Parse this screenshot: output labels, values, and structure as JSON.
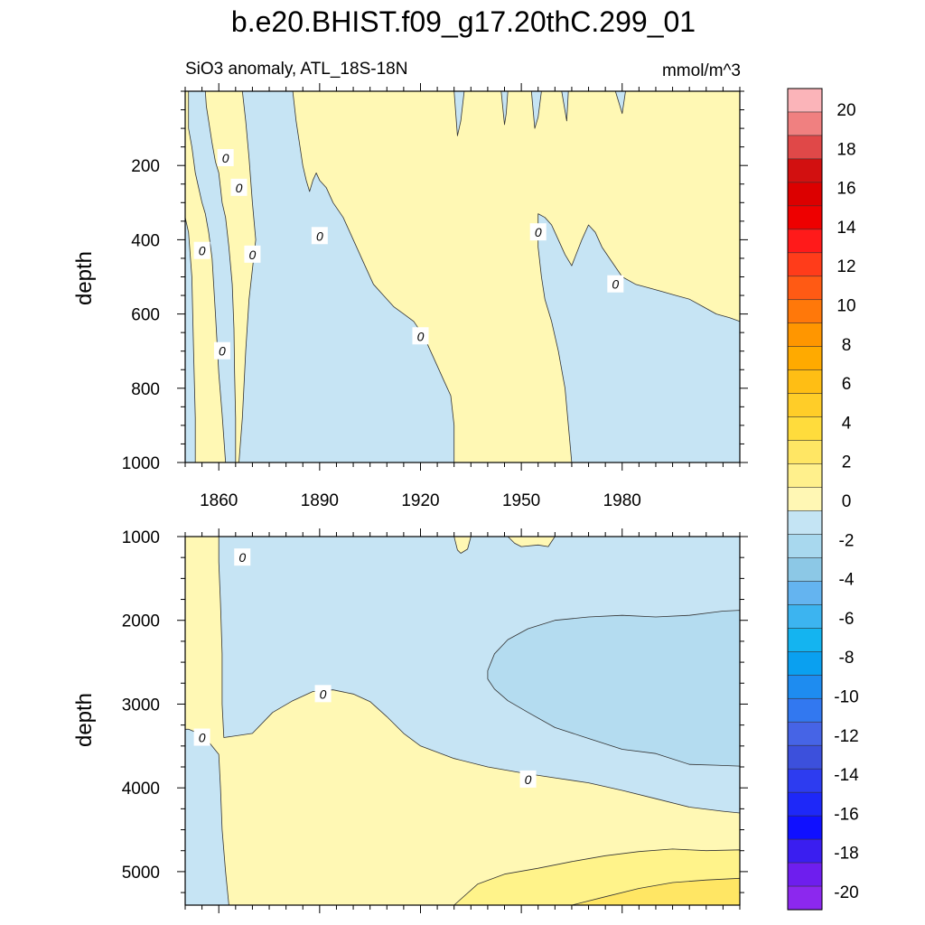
{
  "chart_data": {
    "type": "contour",
    "title": "b.e20.BHIST.f09_g17.20thC.299_01",
    "left_subtitle": "SiO3 anomaly, ATL_18S-18N",
    "right_subtitle": "mmol/m^3",
    "xlabel": "",
    "ylabel": "depth",
    "xlim": [
      1850,
      2015
    ],
    "x_ticks": [
      1860,
      1890,
      1920,
      1950,
      1980
    ],
    "contour_label": "0",
    "panels": [
      {
        "name": "upper",
        "ylim": [
          0,
          1000
        ],
        "y_inverted": true,
        "y_ticks": [
          200,
          400,
          600,
          800,
          1000
        ],
        "background_level": 0.5,
        "regions": [
          {
            "level": -0.5,
            "points": [
              [
                1851,
                0
              ],
              [
                1856,
                0
              ],
              [
                1856.3,
                40
              ],
              [
                1857,
                80
              ],
              [
                1858,
                140
              ],
              [
                1859,
                190
              ],
              [
                1860,
                220
              ],
              [
                1860.5,
                260
              ],
              [
                1861,
                300
              ],
              [
                1862,
                340
              ],
              [
                1863,
                420
              ],
              [
                1864,
                520
              ],
              [
                1864.5,
                640
              ],
              [
                1864.7,
                760
              ],
              [
                1865,
                880
              ],
              [
                1865,
                1000
              ],
              [
                1862,
                1000
              ],
              [
                1861,
                870
              ],
              [
                1860,
                760
              ],
              [
                1859,
                600
              ],
              [
                1858,
                450
              ],
              [
                1857,
                380
              ],
              [
                1856,
                330
              ],
              [
                1855,
                300
              ],
              [
                1854,
                260
              ],
              [
                1853,
                220
              ],
              [
                1852,
                150
              ],
              [
                1851,
                100
              ]
            ]
          },
          {
            "level": -0.5,
            "points": [
              [
                1850,
                340
              ],
              [
                1851,
                380
              ],
              [
                1852,
                500
              ],
              [
                1852.5,
                700
              ],
              [
                1853,
                880
              ],
              [
                1853,
                1000
              ],
              [
                1850,
                1000
              ]
            ]
          },
          {
            "level": -0.5,
            "points": [
              [
                1867,
                0
              ],
              [
                1882,
                0
              ],
              [
                1883,
                80
              ],
              [
                1884,
                140
              ],
              [
                1885,
                200
              ],
              [
                1886,
                240
              ],
              [
                1887,
                270
              ],
              [
                1888,
                240
              ],
              [
                1889,
                220
              ],
              [
                1890,
                240
              ],
              [
                1892,
                260
              ],
              [
                1894,
                300
              ],
              [
                1897,
                340
              ],
              [
                1900,
                400
              ],
              [
                1903,
                460
              ],
              [
                1906,
                520
              ],
              [
                1909,
                550
              ],
              [
                1912,
                580
              ],
              [
                1915,
                600
              ],
              [
                1918,
                620
              ],
              [
                1921,
                660
              ],
              [
                1924,
                720
              ],
              [
                1927,
                780
              ],
              [
                1929,
                820
              ],
              [
                1930,
                900
              ],
              [
                1930,
                1000
              ],
              [
                1866,
                1000
              ],
              [
                1867,
                880
              ],
              [
                1868,
                700
              ],
              [
                1869,
                560
              ],
              [
                1870,
                480
              ],
              [
                1871,
                400
              ],
              [
                1870,
                300
              ],
              [
                1869,
                180
              ],
              [
                1868,
                80
              ]
            ]
          },
          {
            "level": -0.5,
            "points": [
              [
                1955,
                330
              ],
              [
                1957,
                340
              ],
              [
                1959,
                360
              ],
              [
                1961,
                400
              ],
              [
                1963,
                440
              ],
              [
                1965,
                470
              ],
              [
                1968,
                400
              ],
              [
                1970,
                360
              ],
              [
                1972,
                380
              ],
              [
                1974,
                420
              ],
              [
                1977,
                460
              ],
              [
                1980,
                500
              ],
              [
                1984,
                520
              ],
              [
                1988,
                530
              ],
              [
                1992,
                540
              ],
              [
                1996,
                550
              ],
              [
                2000,
                560
              ],
              [
                2004,
                580
              ],
              [
                2008,
                600
              ],
              [
                2012,
                610
              ],
              [
                2015,
                620
              ],
              [
                2015,
                1000
              ],
              [
                1965,
                1000
              ],
              [
                1964,
                900
              ],
              [
                1963,
                800
              ],
              [
                1961,
                700
              ],
              [
                1959,
                620
              ],
              [
                1957,
                560
              ],
              [
                1956,
                500
              ],
              [
                1955,
                420
              ]
            ]
          },
          {
            "level": -0.5,
            "points": [
              [
                1930,
                0
              ],
              [
                1933,
                0
              ],
              [
                1932,
                80
              ],
              [
                1931,
                120
              ]
            ]
          },
          {
            "level": -0.5,
            "points": [
              [
                1944,
                0
              ],
              [
                1946,
                0
              ],
              [
                1945.5,
                60
              ],
              [
                1945,
                90
              ]
            ]
          },
          {
            "level": -0.5,
            "points": [
              [
                1953,
                0
              ],
              [
                1956,
                0
              ],
              [
                1955,
                70
              ],
              [
                1954,
                100
              ]
            ]
          },
          {
            "level": -0.5,
            "points": [
              [
                1962,
                0
              ],
              [
                1964,
                0
              ],
              [
                1963.5,
                80
              ]
            ]
          },
          {
            "level": -0.5,
            "points": [
              [
                1978,
                0
              ],
              [
                1981,
                0
              ],
              [
                1980,
                60
              ]
            ]
          }
        ],
        "label_positions": [
          [
            1862,
            180
          ],
          [
            1866,
            260
          ],
          [
            1855,
            430
          ],
          [
            1870,
            440
          ],
          [
            1861,
            700
          ],
          [
            1890,
            390
          ],
          [
            1920,
            660
          ],
          [
            1955,
            380
          ],
          [
            1978,
            520
          ]
        ]
      },
      {
        "name": "lower",
        "ylim": [
          1000,
          5400
        ],
        "y_inverted": true,
        "y_ticks": [
          1000,
          2000,
          3000,
          4000,
          5000
        ],
        "background_level": -0.5,
        "regions": [
          {
            "level": 0.5,
            "points": [
              [
                1850,
                1000
              ],
              [
                1860,
                1000
              ],
              [
                1860,
                1300
              ],
              [
                1860.5,
                1800
              ],
              [
                1861,
                2400
              ],
              [
                1861,
                3000
              ],
              [
                1861.5,
                3400
              ],
              [
                1870,
                3350
              ],
              [
                1876,
                3100
              ],
              [
                1882,
                2960
              ],
              [
                1888,
                2850
              ],
              [
                1894,
                2830
              ],
              [
                1900,
                2880
              ],
              [
                1905,
                2970
              ],
              [
                1910,
                3150
              ],
              [
                1915,
                3350
              ],
              [
                1920,
                3500
              ],
              [
                1930,
                3650
              ],
              [
                1940,
                3750
              ],
              [
                1950,
                3820
              ],
              [
                1960,
                3880
              ],
              [
                1970,
                3940
              ],
              [
                1980,
                4030
              ],
              [
                1990,
                4130
              ],
              [
                2000,
                4230
              ],
              [
                2010,
                4280
              ],
              [
                2015,
                4300
              ],
              [
                2015,
                5400
              ],
              [
                1863,
                5400
              ],
              [
                1862,
                5000
              ],
              [
                1861,
                4500
              ],
              [
                1860.5,
                4000
              ],
              [
                1860,
                3600
              ],
              [
                1857,
                3450
              ],
              [
                1854,
                3350
              ],
              [
                1851,
                3300
              ],
              [
                1850,
                3300
              ]
            ]
          },
          {
            "level": 0.5,
            "points": [
              [
                1930,
                1000
              ],
              [
                1935,
                1000
              ],
              [
                1934,
                1150
              ],
              [
                1932,
                1200
              ],
              [
                1931,
                1160
              ]
            ]
          },
          {
            "level": 0.5,
            "points": [
              [
                1946,
                1000
              ],
              [
                1960,
                1000
              ],
              [
                1958,
                1120
              ],
              [
                1955,
                1100
              ],
              [
                1950,
                1120
              ],
              [
                1948,
                1080
              ]
            ]
          },
          {
            "level": 1.5,
            "points": [
              [
                1930,
                5400
              ],
              [
                1937,
                5150
              ],
              [
                1945,
                5030
              ],
              [
                1955,
                4960
              ],
              [
                1965,
                4880
              ],
              [
                1975,
                4810
              ],
              [
                1985,
                4760
              ],
              [
                1995,
                4730
              ],
              [
                2005,
                4750
              ],
              [
                2015,
                4740
              ],
              [
                2015,
                5400
              ]
            ]
          },
          {
            "level": 2.5,
            "points": [
              [
                1965,
                5400
              ],
              [
                1975,
                5300
              ],
              [
                1985,
                5200
              ],
              [
                1995,
                5130
              ],
              [
                2005,
                5100
              ],
              [
                2015,
                5080
              ],
              [
                2015,
                5400
              ]
            ]
          },
          {
            "level": -1.5,
            "points": [
              [
                1940,
                2600
              ],
              [
                1942,
                2400
              ],
              [
                1946,
                2230
              ],
              [
                1952,
                2100
              ],
              [
                1960,
                2000
              ],
              [
                1970,
                1960
              ],
              [
                1980,
                1940
              ],
              [
                1990,
                1960
              ],
              [
                2000,
                1940
              ],
              [
                2010,
                1890
              ],
              [
                2015,
                1880
              ],
              [
                2015,
                3740
              ],
              [
                2008,
                3730
              ],
              [
                2000,
                3720
              ],
              [
                1990,
                3590
              ],
              [
                1980,
                3540
              ],
              [
                1970,
                3410
              ],
              [
                1960,
                3280
              ],
              [
                1952,
                3100
              ],
              [
                1946,
                2960
              ],
              [
                1942,
                2820
              ],
              [
                1940,
                2700
              ]
            ]
          }
        ],
        "label_positions": [
          [
            1867,
            1250
          ],
          [
            1891,
            2880
          ],
          [
            1855,
            3400
          ],
          [
            1952,
            3900
          ]
        ]
      }
    ],
    "colorbar": {
      "labels": [
        "20",
        "18",
        "16",
        "14",
        "12",
        "10",
        "8",
        "6",
        "4",
        "2",
        "0",
        "-2",
        "-4",
        "-6",
        "-8",
        "-10",
        "-12",
        "-14",
        "-16",
        "-18",
        "-20"
      ],
      "colors": [
        "#fbb4b9",
        "#f08080",
        "#e04848",
        "#d21010",
        "#dc0000",
        "#ee0000",
        "#ff1a1a",
        "#ff3c1a",
        "#ff5a14",
        "#ff780a",
        "#ff9600",
        "#ffaa00",
        "#ffbe14",
        "#ffcd28",
        "#ffdc3c",
        "#ffe664",
        "#fff08c",
        "#fff7b4",
        "#c4e4f4",
        "#a8d8ee",
        "#8cc8e6",
        "#64b4f0",
        "#3cb4f0",
        "#14b4f0",
        "#0aa0f0",
        "#1e8cf0",
        "#3278f0",
        "#4664e6",
        "#3c50dc",
        "#2d3cf0",
        "#1e28f8",
        "#1010ff",
        "#3a1ef0",
        "#6e1eee",
        "#8c28ee"
      ],
      "level_colors": {
        "-1.5": "#b4dcf0",
        "-0.5": "#c6e4f4",
        "0.5": "#fff8b4",
        "1.5": "#fff38a",
        "2.5": "#ffe664"
      }
    }
  }
}
